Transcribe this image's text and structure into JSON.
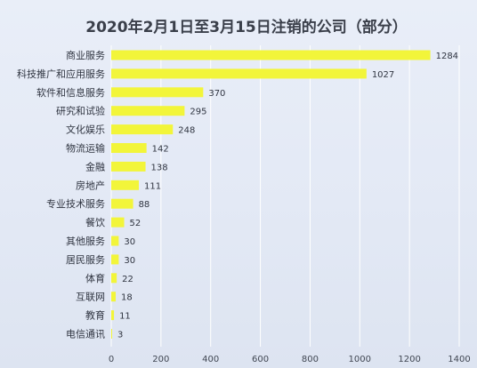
{
  "chart_data": {
    "type": "bar",
    "orientation": "horizontal",
    "title": "2020年2月1日至3月15日注销的公司（部分）",
    "categories": [
      "商业服务",
      "科技推广和应用服务",
      "软件和信息服务",
      "研究和试验",
      "文化娱乐",
      "物流运输",
      "金融",
      "房地产",
      "专业技术服务",
      "餐饮",
      "其他服务",
      "居民服务",
      "体育",
      "互联网",
      "教育",
      "电信通讯"
    ],
    "values": [
      1284,
      1027,
      370,
      295,
      248,
      142,
      138,
      111,
      88,
      52,
      30,
      30,
      22,
      18,
      11,
      3
    ],
    "value_labels": [
      "1284",
      "1027",
      "370",
      "295",
      "248",
      "142",
      "138",
      "111",
      "88",
      "52",
      "30",
      "30",
      "22",
      "18",
      "11",
      "3"
    ],
    "xlim": [
      0,
      1400
    ],
    "xticks": [
      "0",
      "200",
      "400",
      "600",
      "800",
      "1000",
      "1200",
      "1400"
    ],
    "bar_color": "#f2f53a",
    "grid": true
  }
}
